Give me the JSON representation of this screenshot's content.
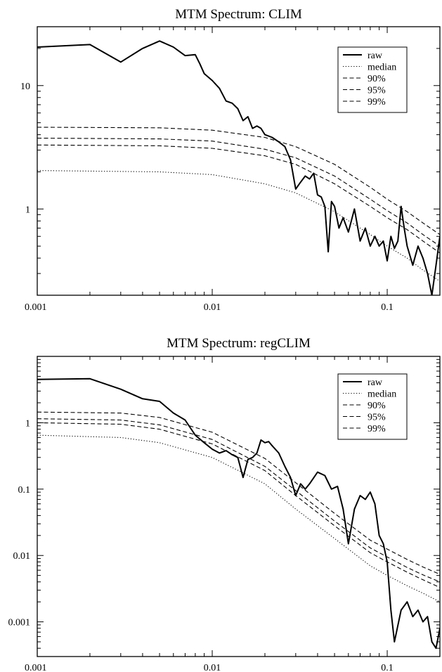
{
  "chart_data": [
    {
      "type": "line",
      "title": "MTM Spectrum: CLIM",
      "xlabel": "",
      "ylabel": "",
      "xscale": "log",
      "yscale": "log",
      "xlim": [
        0.001,
        0.2
      ],
      "ylim": [
        0.2,
        30
      ],
      "x_ticks": [
        {
          "value": 0.001,
          "label": "0.001"
        },
        {
          "value": 0.01,
          "label": "0.01"
        },
        {
          "value": 0.1,
          "label": "0.1"
        }
      ],
      "y_ticks": [
        {
          "value": 1,
          "label": "1"
        },
        {
          "value": 10,
          "label": "10"
        }
      ],
      "legend": {
        "placement": "top-right",
        "entries": [
          "raw",
          "median",
          "90%",
          "95%",
          "99%"
        ]
      },
      "series": [
        {
          "name": "raw",
          "style": "solid",
          "x": [
            0.001,
            0.002,
            0.003,
            0.004,
            0.005,
            0.006,
            0.007,
            0.008,
            0.0085,
            0.009,
            0.01,
            0.011,
            0.012,
            0.013,
            0.014,
            0.015,
            0.016,
            0.017,
            0.018,
            0.019,
            0.02,
            0.022,
            0.024,
            0.026,
            0.028,
            0.03,
            0.032,
            0.034,
            0.036,
            0.038,
            0.04,
            0.042,
            0.044,
            0.046,
            0.048,
            0.05,
            0.053,
            0.056,
            0.06,
            0.065,
            0.07,
            0.075,
            0.08,
            0.085,
            0.09,
            0.095,
            0.1,
            0.105,
            0.11,
            0.115,
            0.12,
            0.125,
            0.13,
            0.14,
            0.15,
            0.16,
            0.17,
            0.18,
            0.19,
            0.2
          ],
          "values": [
            20.5,
            21.5,
            15.5,
            20,
            23,
            20.5,
            17.5,
            17.8,
            15,
            12.5,
            11,
            9.5,
            7.5,
            7.2,
            6.5,
            5.2,
            5.6,
            4.5,
            4.7,
            4.5,
            4.0,
            3.8,
            3.5,
            3.2,
            2.5,
            1.45,
            1.65,
            1.85,
            1.75,
            1.95,
            1.3,
            1.25,
            1.05,
            0.45,
            1.15,
            1.05,
            0.7,
            0.85,
            0.65,
            1.0,
            0.55,
            0.7,
            0.5,
            0.6,
            0.5,
            0.55,
            0.38,
            0.6,
            0.48,
            0.55,
            1.05,
            0.7,
            0.5,
            0.35,
            0.5,
            0.4,
            0.3,
            0.2,
            0.35,
            0.6
          ]
        },
        {
          "name": "median",
          "style": "dotted",
          "x": [
            0.001,
            0.005,
            0.01,
            0.02,
            0.03,
            0.05,
            0.08,
            0.1,
            0.13,
            0.16,
            0.2
          ],
          "values": [
            2.05,
            2.0,
            1.9,
            1.6,
            1.35,
            0.95,
            0.62,
            0.5,
            0.4,
            0.32,
            0.26
          ]
        },
        {
          "name": "90%",
          "style": "dashed",
          "x": [
            0.001,
            0.005,
            0.01,
            0.02,
            0.03,
            0.05,
            0.08,
            0.1,
            0.13,
            0.16,
            0.2
          ],
          "values": [
            3.3,
            3.25,
            3.1,
            2.7,
            2.3,
            1.6,
            1.05,
            0.85,
            0.68,
            0.55,
            0.44
          ]
        },
        {
          "name": "95%",
          "style": "dashed",
          "x": [
            0.001,
            0.005,
            0.01,
            0.02,
            0.03,
            0.05,
            0.08,
            0.1,
            0.13,
            0.16,
            0.2
          ],
          "values": [
            3.75,
            3.7,
            3.55,
            3.05,
            2.6,
            1.85,
            1.2,
            0.97,
            0.77,
            0.62,
            0.5
          ]
        },
        {
          "name": "99%",
          "style": "dashed",
          "x": [
            0.001,
            0.005,
            0.01,
            0.02,
            0.03,
            0.05,
            0.08,
            0.1,
            0.13,
            0.16,
            0.2
          ],
          "values": [
            4.6,
            4.55,
            4.35,
            3.8,
            3.2,
            2.3,
            1.5,
            1.2,
            0.95,
            0.77,
            0.62
          ]
        }
      ]
    },
    {
      "type": "line",
      "title": "MTM Spectrum: regCLIM",
      "xlabel": "",
      "ylabel": "",
      "xscale": "log",
      "yscale": "log",
      "xlim": [
        0.001,
        0.2
      ],
      "ylim": [
        0.0003,
        10
      ],
      "x_ticks": [
        {
          "value": 0.001,
          "label": "0.001"
        },
        {
          "value": 0.01,
          "label": "0.01"
        },
        {
          "value": 0.1,
          "label": "0.1"
        }
      ],
      "y_ticks": [
        {
          "value": 0.001,
          "label": "0.001"
        },
        {
          "value": 0.01,
          "label": "0.01"
        },
        {
          "value": 0.1,
          "label": "0.1"
        },
        {
          "value": 1,
          "label": "1"
        }
      ],
      "legend": {
        "placement": "top-right",
        "entries": [
          "raw",
          "median",
          "90%",
          "95%",
          "99%"
        ]
      },
      "series": [
        {
          "name": "raw",
          "style": "solid",
          "x": [
            0.001,
            0.002,
            0.003,
            0.004,
            0.005,
            0.006,
            0.007,
            0.008,
            0.009,
            0.01,
            0.011,
            0.012,
            0.013,
            0.014,
            0.015,
            0.016,
            0.017,
            0.018,
            0.019,
            0.02,
            0.021,
            0.022,
            0.024,
            0.026,
            0.028,
            0.03,
            0.032,
            0.034,
            0.036,
            0.04,
            0.044,
            0.048,
            0.052,
            0.056,
            0.06,
            0.065,
            0.07,
            0.075,
            0.08,
            0.085,
            0.09,
            0.095,
            0.1,
            0.105,
            0.11,
            0.12,
            0.13,
            0.14,
            0.15,
            0.16,
            0.17,
            0.18,
            0.19,
            0.2
          ],
          "values": [
            4.5,
            4.6,
            3.2,
            2.3,
            2.1,
            1.4,
            1.1,
            0.65,
            0.5,
            0.4,
            0.35,
            0.38,
            0.33,
            0.3,
            0.15,
            0.28,
            0.3,
            0.35,
            0.55,
            0.5,
            0.52,
            0.45,
            0.35,
            0.22,
            0.15,
            0.08,
            0.12,
            0.1,
            0.12,
            0.18,
            0.16,
            0.1,
            0.11,
            0.05,
            0.015,
            0.05,
            0.08,
            0.07,
            0.09,
            0.06,
            0.02,
            0.015,
            0.008,
            0.0015,
            0.0005,
            0.0015,
            0.002,
            0.0012,
            0.0015,
            0.001,
            0.0012,
            0.0005,
            0.0004,
            0.0008
          ]
        },
        {
          "name": "median",
          "style": "dotted",
          "x": [
            0.001,
            0.003,
            0.005,
            0.01,
            0.02,
            0.03,
            0.05,
            0.08,
            0.1,
            0.13,
            0.16,
            0.2
          ],
          "values": [
            0.65,
            0.6,
            0.5,
            0.3,
            0.12,
            0.05,
            0.018,
            0.007,
            0.005,
            0.0035,
            0.0027,
            0.002
          ]
        },
        {
          "name": "90%",
          "style": "dashed",
          "x": [
            0.001,
            0.003,
            0.005,
            0.01,
            0.02,
            0.03,
            0.05,
            0.08,
            0.1,
            0.13,
            0.16,
            0.2
          ],
          "values": [
            1.0,
            0.95,
            0.8,
            0.48,
            0.19,
            0.08,
            0.028,
            0.011,
            0.008,
            0.0056,
            0.0043,
            0.0033
          ]
        },
        {
          "name": "95%",
          "style": "dashed",
          "x": [
            0.001,
            0.003,
            0.005,
            0.01,
            0.02,
            0.03,
            0.05,
            0.08,
            0.1,
            0.13,
            0.16,
            0.2
          ],
          "values": [
            1.15,
            1.1,
            0.93,
            0.56,
            0.22,
            0.095,
            0.033,
            0.013,
            0.0095,
            0.0066,
            0.0051,
            0.004
          ]
        },
        {
          "name": "99%",
          "style": "dashed",
          "x": [
            0.001,
            0.003,
            0.005,
            0.01,
            0.02,
            0.03,
            0.05,
            0.08,
            0.1,
            0.13,
            0.16,
            0.2
          ],
          "values": [
            1.45,
            1.4,
            1.2,
            0.72,
            0.29,
            0.125,
            0.043,
            0.017,
            0.0125,
            0.0087,
            0.0067,
            0.0052
          ]
        }
      ]
    }
  ]
}
